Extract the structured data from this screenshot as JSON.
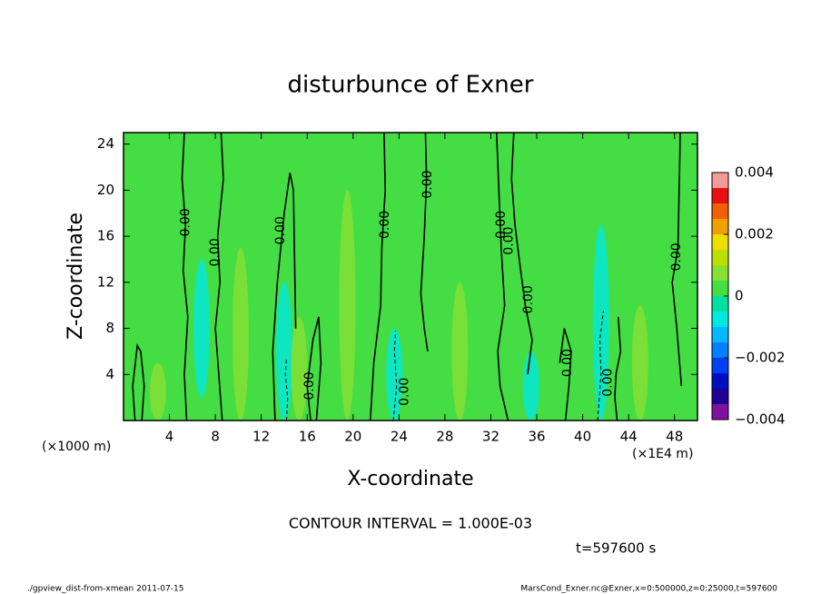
{
  "chart_data": {
    "type": "contour",
    "title": "disturbunce of Exner",
    "x_label": "X-coordinate",
    "y_label": "Z-coordinate",
    "x_unit": "(×1E4 m)",
    "y_unit": "(×1000 m)",
    "xlim": [
      0,
      50
    ],
    "ylim": [
      0,
      25
    ],
    "xticks": [
      4,
      8,
      12,
      16,
      20,
      24,
      28,
      32,
      36,
      40,
      44,
      48
    ],
    "yticks": [
      4,
      8,
      12,
      16,
      20,
      24
    ],
    "background_value": 0.0002,
    "features": [
      {
        "x": 6.8,
        "z0": 2,
        "z1": 14,
        "value": -0.0008
      },
      {
        "x": 14.0,
        "z0": 0,
        "z1": 12,
        "value": -0.0008
      },
      {
        "x": 23.6,
        "z0": 0,
        "z1": 8,
        "value": -0.0008
      },
      {
        "x": 41.6,
        "z0": 0,
        "z1": 17,
        "value": -0.0008
      },
      {
        "x": 35.5,
        "z0": 0,
        "z1": 6,
        "value": -0.0008
      },
      {
        "x": 10.2,
        "z0": 0,
        "z1": 15,
        "value": 0.0007
      },
      {
        "x": 19.5,
        "z0": 0,
        "z1": 20,
        "value": 0.0007
      },
      {
        "x": 15.3,
        "z0": 0,
        "z1": 9,
        "value": 0.0007
      },
      {
        "x": 29.3,
        "z0": 0,
        "z1": 12,
        "value": 0.0007
      },
      {
        "x": 3.0,
        "z0": 0,
        "z1": 5,
        "value": 0.0007
      },
      {
        "x": 45.0,
        "z0": 0,
        "z1": 10,
        "value": 0.0007
      }
    ],
    "contours": [
      {
        "level": 0,
        "x": [
          1.0,
          0.8,
          1.2,
          1.5,
          1.8,
          1.6
        ],
        "z": [
          0,
          3,
          6.5,
          6,
          3,
          0
        ]
      },
      {
        "level": 0,
        "x": [
          5.3,
          5.1,
          5.4,
          5.2,
          5.6,
          5.3,
          5.5
        ],
        "z": [
          25,
          21,
          17,
          13,
          9,
          4,
          0
        ]
      },
      {
        "level": 0,
        "x": [
          8.6,
          8.3,
          8.0,
          8.4,
          8.2,
          8.7,
          8.5
        ],
        "z": [
          0,
          4,
          8,
          12,
          16,
          21,
          25
        ]
      },
      {
        "level": 0,
        "x": [
          13.2,
          13.0,
          13.4,
          14.0,
          14.5,
          14.8,
          14.9,
          15.0
        ],
        "z": [
          0,
          6,
          12,
          18,
          21.5,
          20,
          14,
          8
        ]
      },
      {
        "level": 0,
        "x": [
          16.3,
          16.0,
          16.5,
          17.0,
          17.2,
          16.8
        ],
        "z": [
          0,
          3,
          7,
          9,
          5,
          0
        ]
      },
      {
        "level": 0,
        "x": [
          22.7,
          22.8,
          22.5,
          22.4,
          21.8,
          21.5
        ],
        "z": [
          25,
          20,
          15,
          10,
          5,
          0
        ]
      },
      {
        "level": 0,
        "x": [
          26.3,
          26.4,
          26.2,
          25.9,
          26.2,
          26.5
        ],
        "z": [
          25,
          21,
          16,
          11,
          8,
          6
        ]
      },
      {
        "level": 0,
        "x": [
          32.5,
          32.7,
          32.9,
          33.2,
          32.6,
          32.8,
          33.5
        ],
        "z": [
          25,
          20,
          15,
          10,
          6,
          3,
          0
        ]
      },
      {
        "level": 0,
        "x": [
          34.0,
          33.8,
          34.1,
          34.6,
          35.0,
          35.6,
          35.2
        ],
        "z": [
          25,
          21,
          17,
          13,
          10,
          7,
          4
        ]
      },
      {
        "level": 0,
        "x": [
          38.5,
          38.8,
          39.0,
          38.4,
          38.0
        ],
        "z": [
          0,
          3,
          6,
          8,
          5
        ]
      },
      {
        "level": 0,
        "x": [
          43.0,
          42.8,
          42.9,
          43.3,
          43.1
        ],
        "z": [
          0,
          2,
          4,
          6,
          9
        ]
      },
      {
        "level": 0,
        "x": [
          48.5,
          48.4,
          48.3,
          47.8,
          48.2,
          48.6
        ],
        "z": [
          25,
          20,
          15,
          12,
          8,
          3
        ]
      },
      {
        "level": -0.001,
        "x": [
          14.2,
          14.3,
          14.1,
          14.2
        ],
        "z": [
          0,
          2,
          4,
          5.5
        ]
      },
      {
        "level": -0.001,
        "x": [
          23.5,
          23.8,
          23.6,
          23.7
        ],
        "z": [
          0,
          3,
          6,
          7.8
        ]
      },
      {
        "level": -0.001,
        "x": [
          41.3,
          41.6,
          41.5,
          41.8
        ],
        "z": [
          0,
          4,
          7,
          9.5
        ]
      }
    ],
    "contour_labels": [
      {
        "x": 5.4,
        "z": 17.2,
        "label": "0.00"
      },
      {
        "x": 8.0,
        "z": 14.6,
        "label": "0.00"
      },
      {
        "x": 13.7,
        "z": 16.5,
        "label": "0.00"
      },
      {
        "x": 16.2,
        "z": 3,
        "label": "0.00"
      },
      {
        "x": 22.8,
        "z": 17,
        "label": "0.00"
      },
      {
        "x": 26.5,
        "z": 20.5,
        "label": "0.00"
      },
      {
        "x": 32.9,
        "z": 17,
        "label": "0.00"
      },
      {
        "x": 33.6,
        "z": 15.6,
        "label": "0.00"
      },
      {
        "x": 35.3,
        "z": 10.5,
        "label": "0.00"
      },
      {
        "x": 38.7,
        "z": 5,
        "label": "0.00"
      },
      {
        "x": 24.5,
        "z": 2.5,
        "label": "0.00"
      },
      {
        "x": 42.2,
        "z": 3.3,
        "label": "0.00"
      },
      {
        "x": 48.2,
        "z": 14.2,
        "label": "0.00"
      }
    ],
    "colorbar": {
      "lim": [
        -0.004,
        0.004
      ],
      "ticks": [
        {
          "value": -0.004,
          "label": "−0.004"
        },
        {
          "value": -0.002,
          "label": "−0.002"
        },
        0,
        0.002,
        0.004
      ],
      "colors": [
        "#8010a0",
        "#200090",
        "#0010c0",
        "#0040f0",
        "#0080ff",
        "#00b8ff",
        "#00e8e0",
        "#00e0a0",
        "#44dd44",
        "#88e033",
        "#bbe000",
        "#eedd00",
        "#f0a000",
        "#f06000",
        "#e81010",
        "#f49a9a"
      ]
    },
    "annotations": {
      "contour_interval": "CONTOUR INTERVAL = 1.000E-03",
      "time": "t=597600 s",
      "footer_left": "./gpview_dist-from-xmean  2011-07-15",
      "footer_right": "MarsCond_Exner.nc@Exner,x=0:500000,z=0:25000,t=597600"
    }
  }
}
